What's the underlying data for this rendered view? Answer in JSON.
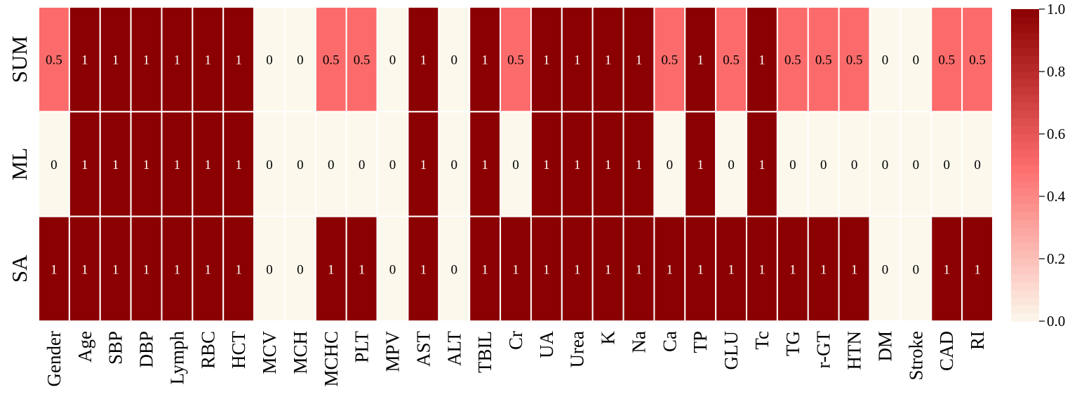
{
  "chart_data": {
    "type": "heatmap",
    "rows": [
      "SUM",
      "ML",
      "SA"
    ],
    "columns": [
      "Gender",
      "Age",
      "SBP",
      "DBP",
      "Lymph",
      "RBC",
      "HCT",
      "MCV",
      "MCH",
      "MCHC",
      "PLT",
      "MPV",
      "AST",
      "ALT",
      "TBIL",
      "Cr",
      "UA",
      "Urea",
      "K",
      "Na",
      "Ca",
      "TP",
      "GLU",
      "Tc",
      "TG",
      "r-GT",
      "HTN",
      "DM",
      "Stroke",
      "CAD",
      "RI"
    ],
    "values": [
      [
        0.5,
        1,
        1,
        1,
        1,
        1,
        1,
        0,
        0,
        0.5,
        0.5,
        0,
        1,
        0,
        1,
        0.5,
        1,
        1,
        1,
        1,
        0.5,
        1,
        0.5,
        1,
        0.5,
        0.5,
        0.5,
        0,
        0,
        0.5,
        0.5
      ],
      [
        0,
        1,
        1,
        1,
        1,
        1,
        1,
        0,
        0,
        0,
        0,
        0,
        1,
        0,
        1,
        0,
        1,
        1,
        1,
        1,
        0,
        1,
        0,
        1,
        0,
        0,
        0,
        0,
        0,
        0,
        0
      ],
      [
        1,
        1,
        1,
        1,
        1,
        1,
        1,
        0,
        0,
        1,
        1,
        0,
        1,
        0,
        1,
        1,
        1,
        1,
        1,
        1,
        1,
        1,
        1,
        1,
        1,
        1,
        1,
        0,
        0,
        1,
        1
      ]
    ],
    "value_labels": [
      [
        "0.5",
        "1",
        "1",
        "1",
        "1",
        "1",
        "1",
        "0",
        "0",
        "0.5",
        "0.5",
        "0",
        "1",
        "0",
        "1",
        "0.5",
        "1",
        "1",
        "1",
        "1",
        "0.5",
        "1",
        "0.5",
        "1",
        "0.5",
        "0.5",
        "0.5",
        "0",
        "0",
        "0.5",
        "0.5"
      ],
      [
        "0",
        "1",
        "1",
        "1",
        "1",
        "1",
        "1",
        "0",
        "0",
        "0",
        "0",
        "0",
        "1",
        "0",
        "1",
        "0",
        "1",
        "1",
        "1",
        "1",
        "0",
        "1",
        "0",
        "1",
        "0",
        "0",
        "0",
        "0",
        "0",
        "0",
        "0"
      ],
      [
        "1",
        "1",
        "1",
        "1",
        "1",
        "1",
        "1",
        "0",
        "0",
        "1",
        "1",
        "0",
        "1",
        "0",
        "1",
        "1",
        "1",
        "1",
        "1",
        "1",
        "1",
        "1",
        "1",
        "1",
        "1",
        "1",
        "1",
        "0",
        "0",
        "1",
        "1"
      ]
    ],
    "colorbar": {
      "range": [
        0.0,
        1.0
      ],
      "ticks": [
        "1.0",
        "0.8",
        "0.6",
        "0.4",
        "0.2",
        "0.0"
      ],
      "low_color": "#fcf8ec",
      "mid_color": "#fc6b6b",
      "high_color": "#8b0000"
    },
    "grid": true,
    "legend": "right"
  }
}
